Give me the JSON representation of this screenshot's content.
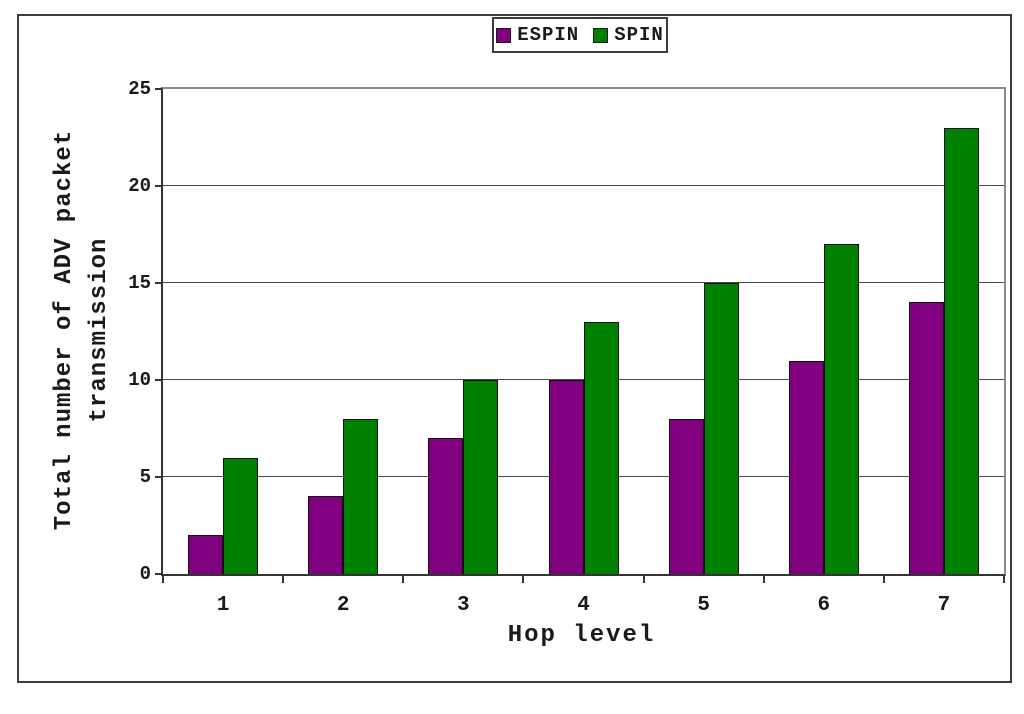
{
  "figure": {
    "background_color": "#ffffff",
    "outer_border_color": "#3c3c3c"
  },
  "legend": {
    "position": "top-center",
    "items": [
      {
        "label": "ESPIN",
        "color": "#800080"
      },
      {
        "label": "SPIN",
        "color": "#008000"
      }
    ]
  },
  "x_axis": {
    "title": "Hop level",
    "tick_labels": [
      "1",
      "2",
      "3",
      "4",
      "5",
      "6",
      "7"
    ]
  },
  "y_axis": {
    "title": "Total number of ADV packet transmission",
    "title_lines": [
      "Total number of ADV packet",
      "transmission"
    ],
    "tick_labels": [
      "0",
      "5",
      "10",
      "15",
      "20",
      "25"
    ]
  },
  "chart_data": {
    "type": "bar",
    "title": "",
    "xlabel": "Hop level",
    "ylabel": "Total number of ADV packet transmission",
    "categories": [
      "1",
      "2",
      "3",
      "4",
      "5",
      "6",
      "7"
    ],
    "series": [
      {
        "name": "ESPIN",
        "color": "#800080",
        "values": [
          2,
          4,
          7,
          10,
          8,
          11,
          14
        ]
      },
      {
        "name": "SPIN",
        "color": "#008000",
        "values": [
          6,
          8,
          10,
          13,
          15,
          17,
          23
        ]
      }
    ],
    "ylim": [
      0,
      25
    ],
    "yticks": [
      0,
      5,
      10,
      15,
      20,
      25
    ],
    "grid": true,
    "gridline_color": "#4a4a4a",
    "legend_position": "top-center"
  }
}
